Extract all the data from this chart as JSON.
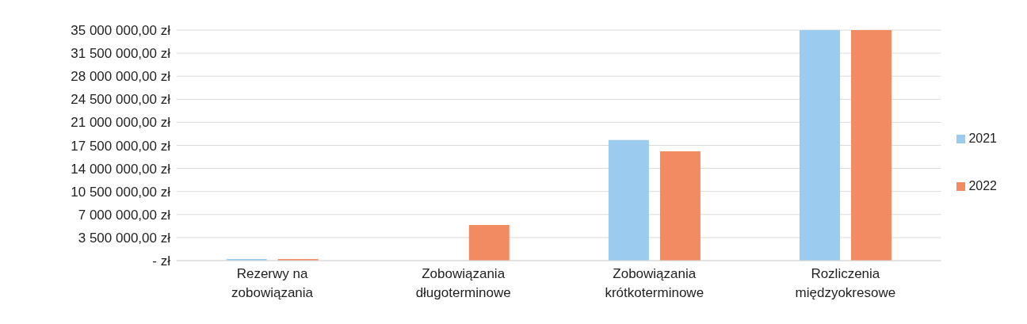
{
  "chart_data": {
    "type": "bar",
    "categories": [
      "Rezerwy na zobowiązania",
      "Zobowiązania długoterminowe",
      "Zobowiązania krótkoterminowe",
      "Rozliczenia międzyokresowe"
    ],
    "series": [
      {
        "name": "2021",
        "color": "#9ccbf0",
        "values": [
          250000,
          0,
          18300000,
          35000000
        ]
      },
      {
        "name": "2022",
        "color": "#f28a62",
        "values": [
          250000,
          5400000,
          16600000,
          35000000
        ]
      }
    ],
    "ylim": [
      0,
      35000000
    ],
    "yticks": [
      {
        "value": 0,
        "label": "-  zł"
      },
      {
        "value": 3500000,
        "label": "3 500 000,00 zł"
      },
      {
        "value": 7000000,
        "label": "7 000 000,00 zł"
      },
      {
        "value": 10500000,
        "label": "10 500 000,00 zł"
      },
      {
        "value": 14000000,
        "label": "14 000 000,00 zł"
      },
      {
        "value": 17500000,
        "label": "17 500 000,00 zł"
      },
      {
        "value": 21000000,
        "label": "21 000 000,00 zł"
      },
      {
        "value": 24500000,
        "label": "24 500 000,00 zł"
      },
      {
        "value": 28000000,
        "label": "28 000 000,00 zł"
      },
      {
        "value": 31500000,
        "label": "31 500 000,00 zł"
      },
      {
        "value": 35000000,
        "label": "35 000 000,00 zł"
      }
    ],
    "grid": "y",
    "legend": "right"
  }
}
